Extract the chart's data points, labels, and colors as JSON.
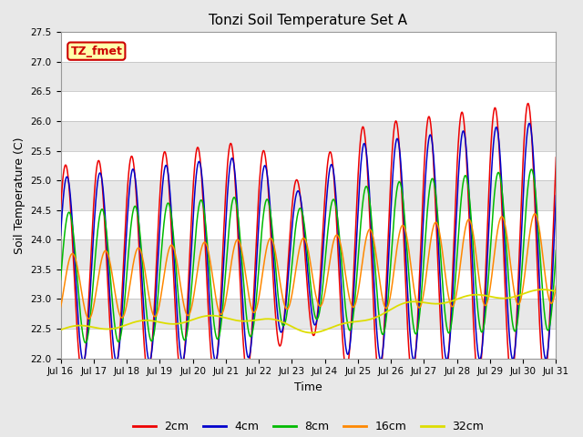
{
  "title": "Tonzi Soil Temperature Set A",
  "xlabel": "Time",
  "ylabel": "Soil Temperature (C)",
  "ylim": [
    22.0,
    27.5
  ],
  "yticks": [
    22.0,
    22.5,
    23.0,
    23.5,
    24.0,
    24.5,
    25.0,
    25.5,
    26.0,
    26.5,
    27.0,
    27.5
  ],
  "xtick_labels": [
    "Jul 16",
    "Jul 17",
    "Jul 18",
    "Jul 19",
    "Jul 20",
    "Jul 21",
    "Jul 22",
    "Jul 23",
    "Jul 24",
    "Jul 25",
    "Jul 26",
    "Jul 27",
    "Jul 28",
    "Jul 29",
    "Jul 30",
    "Jul 31"
  ],
  "line_colors": [
    "#ee0000",
    "#0000cc",
    "#00bb00",
    "#ff8800",
    "#dddd00"
  ],
  "line_labels": [
    "2cm",
    "4cm",
    "8cm",
    "16cm",
    "32cm"
  ],
  "annotation_text": "TZ_fmet",
  "annotation_bg": "#ffffaa",
  "annotation_border": "#cc0000",
  "plot_bg": "#e8e8e8",
  "band_color": "#ffffff",
  "fig_bg": "#e8e8e8"
}
